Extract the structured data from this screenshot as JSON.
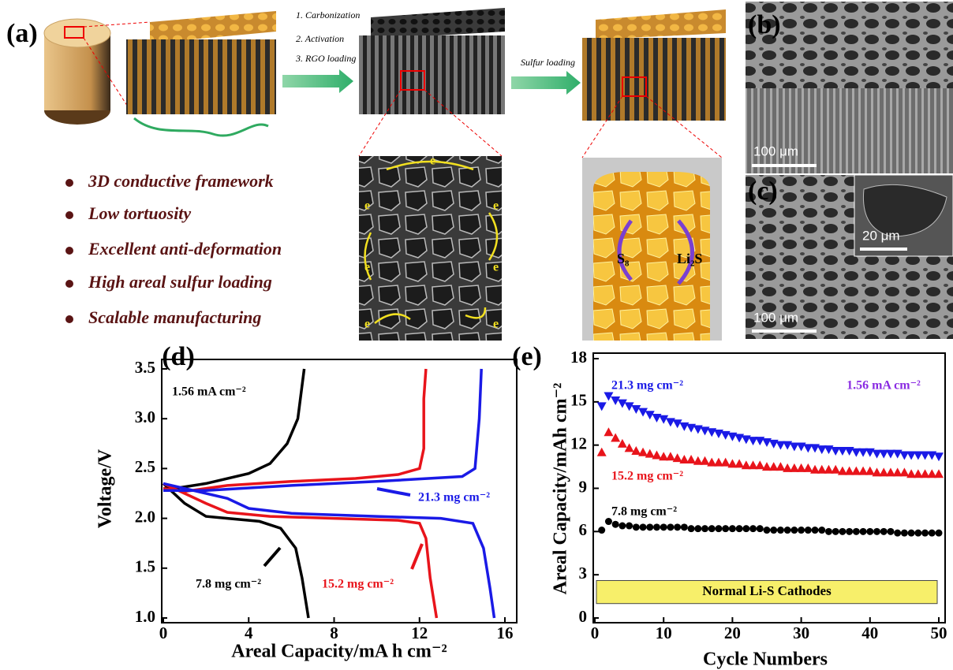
{
  "panel_a": {
    "label": "(a)",
    "steps": [
      "1. Carbonization",
      "2. Activation",
      "3. RGO loading"
    ],
    "step_sulfur": "Sulfur loading",
    "features": [
      "3D conductive framework",
      "Low tortuosity",
      "Excellent anti-deformation",
      "High areal sulfur loading",
      "Scalable manufacturing"
    ],
    "electron": "e",
    "s8": "S₈",
    "li2s": "Li₂S"
  },
  "panel_b": {
    "label": "(b)",
    "scale_bar": "100 μm"
  },
  "panel_c": {
    "label": "(c)",
    "scale_bar": "100 μm",
    "inset_scale_bar": "20 μm"
  },
  "chart_data": [
    {
      "type": "line",
      "panel_label": "(d)",
      "annotation": "1.56 mA cm⁻²",
      "xlabel": "Areal Capacity/mA h cm⁻²",
      "ylabel": "Voltage/V",
      "xlim": [
        0,
        16
      ],
      "xticks": [
        0,
        4,
        8,
        12,
        16
      ],
      "ylim": [
        1,
        3.5
      ],
      "yticks": [
        {
          "value": 1,
          "label": "1.0"
        },
        1.5,
        {
          "value": 2,
          "label": "2.0"
        },
        2.5,
        {
          "value": 3,
          "label": "3.0"
        },
        3.5
      ],
      "series": [
        {
          "name": "7.8 mg cm⁻²",
          "color": "#000000",
          "x": [
            0,
            0.5,
            2,
            4,
            5,
            5.8,
            6.3,
            6.6,
            null,
            0,
            0.5,
            1,
            2,
            3,
            4.5,
            5.5,
            6.2,
            6.5,
            6.8
          ],
          "values": [
            2.3,
            2.3,
            2.35,
            2.45,
            2.55,
            2.75,
            3.0,
            3.5,
            null,
            2.35,
            2.25,
            2.15,
            2.02,
            2.0,
            1.97,
            1.9,
            1.7,
            1.4,
            1.0
          ]
        },
        {
          "name": "15.2 mg cm⁻²",
          "color": "#e8141b",
          "x": [
            0,
            1,
            3,
            6,
            9,
            11,
            12,
            12.2,
            12.2,
            12.3,
            null,
            0,
            1,
            2,
            3,
            5,
            8,
            11,
            12,
            12.3,
            12.5,
            12.8
          ],
          "values": [
            2.3,
            2.27,
            2.33,
            2.37,
            2.4,
            2.44,
            2.5,
            2.7,
            3.2,
            3.5,
            null,
            2.35,
            2.25,
            2.15,
            2.06,
            2.02,
            2.0,
            1.98,
            1.95,
            1.8,
            1.4,
            1.0
          ]
        },
        {
          "name": "21.3 mg cm⁻²",
          "color": "#1a1ae6",
          "x": [
            0,
            2,
            6,
            10,
            14,
            14.6,
            14.8,
            14.9,
            null,
            0,
            1,
            3,
            4,
            6,
            10,
            13,
            14.5,
            15,
            15.3,
            15.5
          ],
          "values": [
            2.28,
            2.28,
            2.33,
            2.37,
            2.42,
            2.5,
            3.0,
            3.5,
            null,
            2.35,
            2.3,
            2.2,
            2.1,
            2.05,
            2.02,
            2.0,
            1.95,
            1.7,
            1.3,
            1.0
          ]
        }
      ]
    },
    {
      "type": "scatter",
      "panel_label": "(e)",
      "annotation": "1.56 mA cm⁻²",
      "annotation_color": "#8a2be2",
      "xlabel": "Cycle Numbers",
      "ylabel": "Areal Capacity/mAh cm⁻²",
      "xlim": [
        0,
        50
      ],
      "xticks": [
        0,
        10,
        20,
        30,
        40,
        50
      ],
      "ylim": [
        0,
        18
      ],
      "yticks": [
        0,
        3,
        6,
        9,
        12,
        15,
        18
      ],
      "shaded_region": {
        "label": "Normal Li-S Cathodes",
        "y": [
          1,
          2.6
        ],
        "color": "#f7ef6a"
      },
      "x": [
        1,
        2,
        3,
        4,
        5,
        6,
        7,
        8,
        9,
        10,
        11,
        12,
        13,
        14,
        15,
        16,
        17,
        18,
        19,
        20,
        21,
        22,
        23,
        24,
        25,
        26,
        27,
        28,
        29,
        30,
        31,
        32,
        33,
        34,
        35,
        36,
        37,
        38,
        39,
        40,
        41,
        42,
        43,
        44,
        45,
        46,
        47,
        48,
        49,
        50
      ],
      "series": [
        {
          "name": "21.3 mg cm⁻²",
          "color": "#1a1ae6",
          "marker": "triangle-down",
          "values": [
            14.7,
            15.4,
            15.1,
            14.9,
            14.7,
            14.5,
            14.3,
            14.1,
            13.9,
            13.8,
            13.6,
            13.5,
            13.3,
            13.2,
            13.1,
            13.0,
            12.9,
            12.8,
            12.7,
            12.6,
            12.5,
            12.4,
            12.3,
            12.3,
            12.2,
            12.1,
            12.0,
            12.0,
            11.9,
            11.9,
            11.8,
            11.8,
            11.7,
            11.7,
            11.6,
            11.6,
            11.6,
            11.5,
            11.5,
            11.5,
            11.4,
            11.4,
            11.4,
            11.4,
            11.3,
            11.3,
            11.3,
            11.3,
            11.3,
            11.2
          ]
        },
        {
          "name": "15.2 mg cm⁻²",
          "color": "#e8141b",
          "marker": "triangle-up",
          "values": [
            11.5,
            12.9,
            12.5,
            12.1,
            11.8,
            11.6,
            11.5,
            11.4,
            11.3,
            11.2,
            11.2,
            11.1,
            11.0,
            11.0,
            10.9,
            10.9,
            10.8,
            10.8,
            10.8,
            10.7,
            10.7,
            10.6,
            10.6,
            10.6,
            10.5,
            10.5,
            10.5,
            10.4,
            10.4,
            10.4,
            10.4,
            10.3,
            10.3,
            10.3,
            10.3,
            10.2,
            10.2,
            10.2,
            10.2,
            10.2,
            10.1,
            10.1,
            10.1,
            10.1,
            10.1,
            10.0,
            10.0,
            10.0,
            10.0,
            10.0
          ]
        },
        {
          "name": "7.8 mg cm⁻²",
          "color": "#000000",
          "marker": "circle",
          "values": [
            6.1,
            6.7,
            6.5,
            6.4,
            6.4,
            6.3,
            6.3,
            6.3,
            6.3,
            6.3,
            6.3,
            6.3,
            6.3,
            6.2,
            6.2,
            6.2,
            6.2,
            6.2,
            6.2,
            6.2,
            6.2,
            6.2,
            6.2,
            6.2,
            6.1,
            6.1,
            6.1,
            6.1,
            6.1,
            6.1,
            6.1,
            6.1,
            6.1,
            6.0,
            6.0,
            6.0,
            6.0,
            6.0,
            6.0,
            6.0,
            6.0,
            6.0,
            6.0,
            5.9,
            5.9,
            5.9,
            5.9,
            5.9,
            5.9,
            5.9
          ]
        }
      ]
    }
  ]
}
